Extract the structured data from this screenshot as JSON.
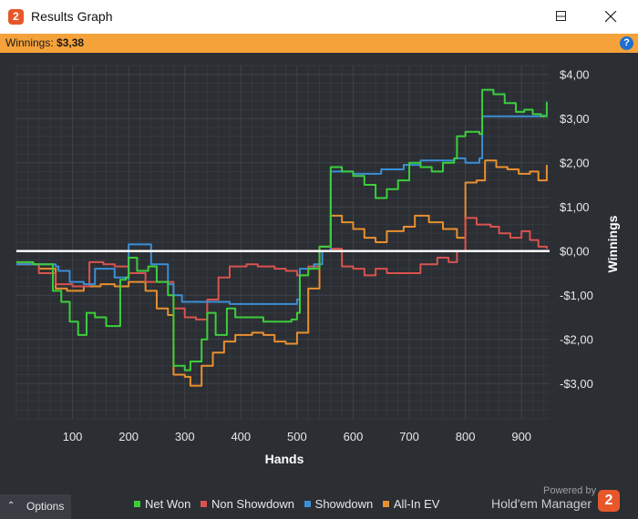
{
  "window": {
    "title": "Results Graph",
    "icon_text": "2"
  },
  "infobar": {
    "label": "Winnings:",
    "value": "$3,38",
    "help_glyph": "?"
  },
  "colors": {
    "background": "#2b2e33",
    "grid": "#3d4148",
    "zero_line": "#ffffff",
    "net_won": "#3ccf3c",
    "non_showdown": "#d9534f",
    "showdown": "#3b8fd6",
    "all_in_ev": "#e8902f",
    "accent_bar": "#f5a23a"
  },
  "footer": {
    "options_label": "Options",
    "options_icon": "chevron-up-icon",
    "powered_by": "Powered by",
    "brand_name": "Hold'em Manager",
    "brand_logo_text": "2"
  },
  "chart_data": {
    "type": "line",
    "xlabel": "Hands",
    "ylabel": "Winnings",
    "xlim": [
      0,
      950
    ],
    "ylim": [
      -3.8,
      4.2
    ],
    "x_ticks": [
      100,
      200,
      300,
      400,
      500,
      600,
      700,
      800,
      900
    ],
    "x_tick_labels": [
      "100",
      "200",
      "300",
      "400",
      "500",
      "600",
      "700",
      "800",
      "900"
    ],
    "y_ticks": [
      4,
      3,
      2,
      1,
      0,
      -1,
      -2,
      -3
    ],
    "y_tick_labels": [
      "$4,00",
      "$3,00",
      "$2,00",
      "$1,00",
      "$0,00",
      "-$1,00",
      "-$2,00",
      "-$3,00"
    ],
    "grid": true,
    "legend_position": "bottom",
    "series": [
      {
        "name": "Net Won",
        "color": "#3ccf3c",
        "points": [
          [
            0,
            -0.25
          ],
          [
            30,
            -0.3
          ],
          [
            50,
            -0.3
          ],
          [
            65,
            -0.9
          ],
          [
            80,
            -1.15
          ],
          [
            95,
            -1.6
          ],
          [
            110,
            -1.9
          ],
          [
            125,
            -1.4
          ],
          [
            140,
            -1.5
          ],
          [
            160,
            -1.7
          ],
          [
            185,
            -0.65
          ],
          [
            195,
            -0.6
          ],
          [
            200,
            -0.15
          ],
          [
            215,
            -0.45
          ],
          [
            235,
            -0.35
          ],
          [
            250,
            -0.7
          ],
          [
            270,
            -1.0
          ],
          [
            280,
            -2.6
          ],
          [
            300,
            -2.7
          ],
          [
            310,
            -2.5
          ],
          [
            330,
            -2.0
          ],
          [
            340,
            -1.4
          ],
          [
            355,
            -1.9
          ],
          [
            375,
            -1.3
          ],
          [
            390,
            -1.5
          ],
          [
            420,
            -1.5
          ],
          [
            440,
            -1.6
          ],
          [
            470,
            -1.6
          ],
          [
            490,
            -1.55
          ],
          [
            500,
            -1.4
          ],
          [
            505,
            -0.55
          ],
          [
            520,
            -0.4
          ],
          [
            540,
            0.1
          ],
          [
            560,
            1.9
          ],
          [
            580,
            1.8
          ],
          [
            600,
            1.7
          ],
          [
            620,
            1.5
          ],
          [
            640,
            1.2
          ],
          [
            660,
            1.4
          ],
          [
            680,
            1.6
          ],
          [
            700,
            2.0
          ],
          [
            720,
            1.9
          ],
          [
            740,
            1.8
          ],
          [
            760,
            2.0
          ],
          [
            780,
            2.1
          ],
          [
            785,
            2.6
          ],
          [
            800,
            2.7
          ],
          [
            825,
            2.65
          ],
          [
            830,
            3.65
          ],
          [
            850,
            3.55
          ],
          [
            870,
            3.35
          ],
          [
            890,
            3.15
          ],
          [
            905,
            3.2
          ],
          [
            920,
            3.1
          ],
          [
            935,
            3.05
          ],
          [
            945,
            3.38
          ]
        ]
      },
      {
        "name": "Non Showdown",
        "color": "#d9534f",
        "points": [
          [
            0,
            -0.3
          ],
          [
            40,
            -0.5
          ],
          [
            70,
            -0.75
          ],
          [
            100,
            -0.8
          ],
          [
            130,
            -0.25
          ],
          [
            155,
            -0.3
          ],
          [
            175,
            -0.35
          ],
          [
            200,
            -0.5
          ],
          [
            230,
            -0.7
          ],
          [
            260,
            -0.7
          ],
          [
            280,
            -1.3
          ],
          [
            300,
            -1.5
          ],
          [
            320,
            -1.55
          ],
          [
            340,
            -1.1
          ],
          [
            360,
            -0.6
          ],
          [
            380,
            -0.35
          ],
          [
            410,
            -0.3
          ],
          [
            430,
            -0.35
          ],
          [
            460,
            -0.4
          ],
          [
            480,
            -0.45
          ],
          [
            500,
            -0.55
          ],
          [
            520,
            -0.35
          ],
          [
            540,
            0.1
          ],
          [
            560,
            0.05
          ],
          [
            580,
            -0.35
          ],
          [
            600,
            -0.4
          ],
          [
            620,
            -0.55
          ],
          [
            640,
            -0.4
          ],
          [
            660,
            -0.5
          ],
          [
            690,
            -0.5
          ],
          [
            720,
            -0.3
          ],
          [
            750,
            -0.15
          ],
          [
            770,
            -0.25
          ],
          [
            785,
            0.0
          ],
          [
            800,
            0.75
          ],
          [
            820,
            0.6
          ],
          [
            845,
            0.55
          ],
          [
            860,
            0.4
          ],
          [
            880,
            0.3
          ],
          [
            900,
            0.45
          ],
          [
            915,
            0.25
          ],
          [
            930,
            0.1
          ],
          [
            945,
            0.05
          ]
        ]
      },
      {
        "name": "Showdown",
        "color": "#3b8fd6",
        "points": [
          [
            0,
            -0.3
          ],
          [
            70,
            -0.35
          ],
          [
            75,
            -0.45
          ],
          [
            95,
            -0.7
          ],
          [
            120,
            -0.75
          ],
          [
            140,
            -0.4
          ],
          [
            175,
            -0.6
          ],
          [
            200,
            -0.65
          ],
          [
            200,
            0.15
          ],
          [
            235,
            0.15
          ],
          [
            240,
            -0.3
          ],
          [
            270,
            -0.75
          ],
          [
            280,
            -1.0
          ],
          [
            295,
            -1.15
          ],
          [
            360,
            -1.15
          ],
          [
            380,
            -1.2
          ],
          [
            480,
            -1.2
          ],
          [
            500,
            -1.1
          ],
          [
            505,
            -0.4
          ],
          [
            530,
            -0.3
          ],
          [
            545,
            0.0
          ],
          [
            560,
            1.8
          ],
          [
            600,
            1.75
          ],
          [
            650,
            1.85
          ],
          [
            690,
            1.95
          ],
          [
            720,
            2.05
          ],
          [
            780,
            2.1
          ],
          [
            800,
            2.0
          ],
          [
            825,
            2.1
          ],
          [
            830,
            3.05
          ],
          [
            900,
            3.05
          ],
          [
            940,
            3.1
          ]
        ]
      },
      {
        "name": "All-In EV",
        "color": "#e8902f",
        "points": [
          [
            0,
            -0.3
          ],
          [
            40,
            -0.4
          ],
          [
            70,
            -0.85
          ],
          [
            90,
            -0.9
          ],
          [
            120,
            -0.8
          ],
          [
            150,
            -0.75
          ],
          [
            175,
            -0.8
          ],
          [
            200,
            -0.7
          ],
          [
            230,
            -0.9
          ],
          [
            250,
            -1.3
          ],
          [
            270,
            -1.45
          ],
          [
            280,
            -2.8
          ],
          [
            300,
            -2.85
          ],
          [
            310,
            -3.05
          ],
          [
            330,
            -2.6
          ],
          [
            350,
            -2.3
          ],
          [
            370,
            -2.05
          ],
          [
            390,
            -1.9
          ],
          [
            420,
            -1.85
          ],
          [
            440,
            -1.9
          ],
          [
            460,
            -2.05
          ],
          [
            480,
            -2.1
          ],
          [
            500,
            -1.85
          ],
          [
            520,
            -0.85
          ],
          [
            540,
            0.1
          ],
          [
            560,
            0.8
          ],
          [
            580,
            0.65
          ],
          [
            600,
            0.5
          ],
          [
            620,
            0.3
          ],
          [
            640,
            0.2
          ],
          [
            660,
            0.45
          ],
          [
            690,
            0.55
          ],
          [
            710,
            0.8
          ],
          [
            735,
            0.65
          ],
          [
            760,
            0.5
          ],
          [
            785,
            0.3
          ],
          [
            800,
            1.55
          ],
          [
            820,
            1.6
          ],
          [
            835,
            2.05
          ],
          [
            855,
            1.9
          ],
          [
            875,
            1.85
          ],
          [
            895,
            1.75
          ],
          [
            915,
            1.8
          ],
          [
            930,
            1.6
          ],
          [
            945,
            1.95
          ]
        ]
      }
    ]
  }
}
